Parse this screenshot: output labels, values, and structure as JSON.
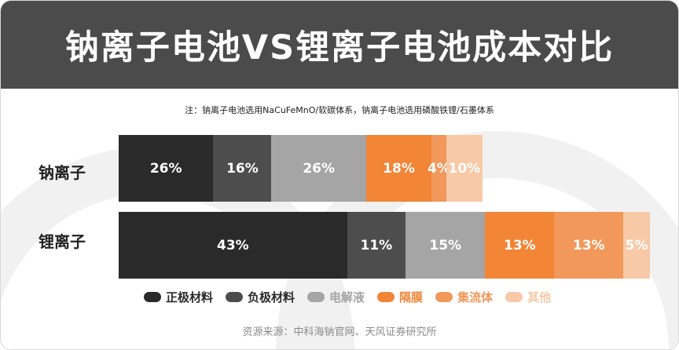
{
  "title": "钠离子电池VS锂离子电池成本对比",
  "note": "注：钠离子电池选用NaCuFeMnO/软碳体系，钠离子电池选用磷酸铁锂/石墨体系",
  "source": "资源来源：中科海钠官网、天风证券研究所",
  "chart_data": {
    "type": "bar",
    "orientation": "horizontal",
    "stacked": true,
    "categories": [
      "钠离子",
      "锂离子"
    ],
    "relative_total_cost": [
      0.685,
      1.0
    ],
    "series": [
      {
        "name": "正极材料",
        "color": "#2b2a2a",
        "values": [
          26,
          43
        ]
      },
      {
        "name": "负极材料",
        "color": "#4e4d4d",
        "values": [
          16,
          11
        ]
      },
      {
        "name": "电解液",
        "color": "#a5a5a5",
        "values": [
          26,
          15
        ]
      },
      {
        "name": "隔膜",
        "color": "#f28536",
        "values": [
          18,
          13
        ]
      },
      {
        "name": "集流体",
        "color": "#f1985a",
        "values": [
          4,
          13
        ]
      },
      {
        "name": "其他",
        "color": "#f8c9a7",
        "values": [
          10,
          5
        ]
      }
    ],
    "legend": "bottom",
    "unit": "%"
  }
}
